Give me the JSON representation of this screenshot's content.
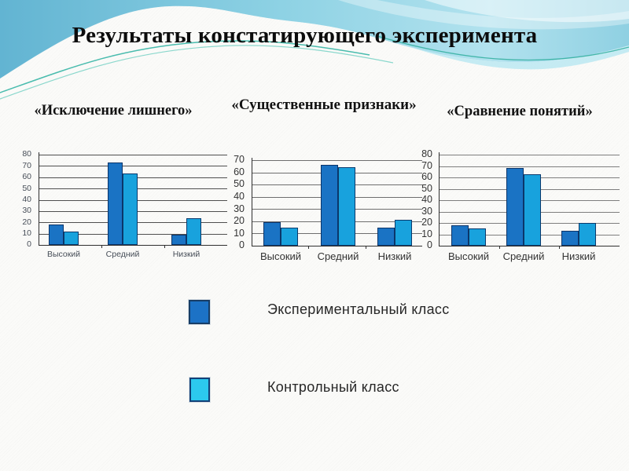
{
  "slide": {
    "title": "Результаты констатирующего эксперимента"
  },
  "legend": {
    "items": [
      {
        "label": "Экспериментальный класс",
        "color": "#1c72c6",
        "border": "#173d66"
      },
      {
        "label": "Контрольный класс",
        "color": "#2cc9ee",
        "border": "#134178"
      }
    ],
    "position": "bottom-center"
  },
  "chart_data": [
    {
      "type": "bar",
      "title": "«Исключение лишнего»",
      "categories": [
        "Высокий",
        "Средний",
        "Низкий"
      ],
      "series": [
        {
          "name": "Экспериментальный класс",
          "color": "#1a73c4",
          "values": [
            18,
            73,
            9
          ]
        },
        {
          "name": "Контрольный класс",
          "color": "#18a2dd",
          "values": [
            12,
            63,
            24
          ]
        }
      ],
      "xlabel": "",
      "ylabel": "",
      "ylim": [
        0,
        80
      ],
      "ytick_step": 10,
      "grid": true,
      "legend_position": "none"
    },
    {
      "type": "bar",
      "title": "«Существенные признаки»",
      "categories": [
        "Высокий",
        "Средний",
        "Низкий"
      ],
      "series": [
        {
          "name": "Экспериментальный класс",
          "color": "#1a73c4",
          "values": [
            19,
            66,
            15
          ]
        },
        {
          "name": "Контрольный класс",
          "color": "#18a2dd",
          "values": [
            15,
            64,
            21
          ]
        }
      ],
      "xlabel": "",
      "ylabel": "",
      "ylim": [
        0,
        70
      ],
      "ytick_step": 10,
      "grid": true,
      "legend_position": "none"
    },
    {
      "type": "bar",
      "title": "«Сравнение понятий»",
      "categories": [
        "Высокий",
        "Средний",
        "Низкий"
      ],
      "series": [
        {
          "name": "Экспериментальный класс",
          "color": "#1a73c4",
          "values": [
            18,
            68,
            13
          ]
        },
        {
          "name": "Контрольный класс",
          "color": "#18a2dd",
          "values": [
            15,
            63,
            20
          ]
        }
      ],
      "xlabel": "",
      "ylabel": "",
      "ylim": [
        0,
        80
      ],
      "ytick_step": 10,
      "grid": true,
      "legend_position": "none"
    }
  ]
}
